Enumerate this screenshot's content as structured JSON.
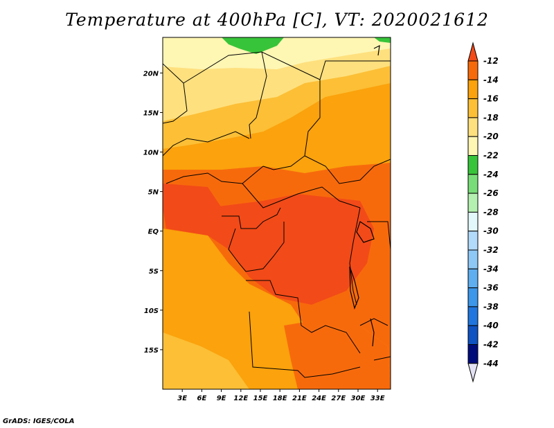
{
  "title": "Temperature at 400hPa [C], VT: 2020021612",
  "credit": "GrADS: IGES/COLA",
  "map": {
    "region": "Central Africa",
    "lat_labels": [
      "20N",
      "15N",
      "10N",
      "5N",
      "EQ",
      "5S",
      "10S",
      "15S"
    ],
    "lon_labels": [
      "3E",
      "6E",
      "9E",
      "12E",
      "15E",
      "18E",
      "21E",
      "24E",
      "27E",
      "30E",
      "33E"
    ],
    "lat_range": [
      -20,
      24.5
    ],
    "lon_range": [
      0,
      35
    ]
  },
  "colorbar": {
    "labels": [
      "-12",
      "-14",
      "-16",
      "-18",
      "-20",
      "-22",
      "-24",
      "-26",
      "-28",
      "-30",
      "-32",
      "-34",
      "-36",
      "-38",
      "-40",
      "-42",
      "-44"
    ],
    "colors": [
      "#f24a18",
      "#f76a0c",
      "#fba20c",
      "#fcbf36",
      "#fee07e",
      "#fef6b3",
      "#38c43a",
      "#78dd78",
      "#b4f0b0",
      "#e2f8fa",
      "#b2dafa",
      "#8ec8f6",
      "#5eaef0",
      "#3c96ea",
      "#2076de",
      "#0f52c2",
      "#000c7a",
      "#e2e2f4"
    ]
  }
}
